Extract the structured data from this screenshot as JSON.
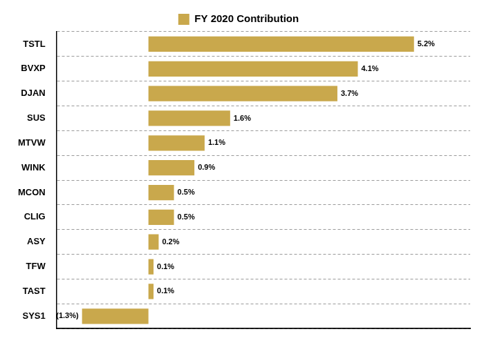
{
  "chart_data": {
    "type": "bar",
    "orientation": "horizontal",
    "legend": "top",
    "grid": true,
    "data_labels": true,
    "tick_labels": "y",
    "categories": [
      "TSTL",
      "BVXP",
      "DJAN",
      "SUS",
      "MTVW",
      "WINK",
      "MCON",
      "CLIG",
      "ASY",
      "TFW",
      "TAST",
      "SYS1"
    ],
    "series": [
      {
        "name": "FY 2020 Contribution",
        "color": "#C9A84C",
        "values": [
          5.2,
          4.1,
          3.7,
          1.6,
          1.1,
          0.9,
          0.5,
          0.5,
          0.2,
          0.1,
          0.1,
          -1.3
        ],
        "value_labels": [
          "5.2%",
          "4.1%",
          "3.7%",
          "1.6%",
          "1.1%",
          "0.9%",
          "0.5%",
          "0.5%",
          "0.2%",
          "0.1%",
          "0.1%",
          "(1.3%)"
        ]
      }
    ],
    "xlim": [
      -1.8,
      6.3
    ]
  }
}
